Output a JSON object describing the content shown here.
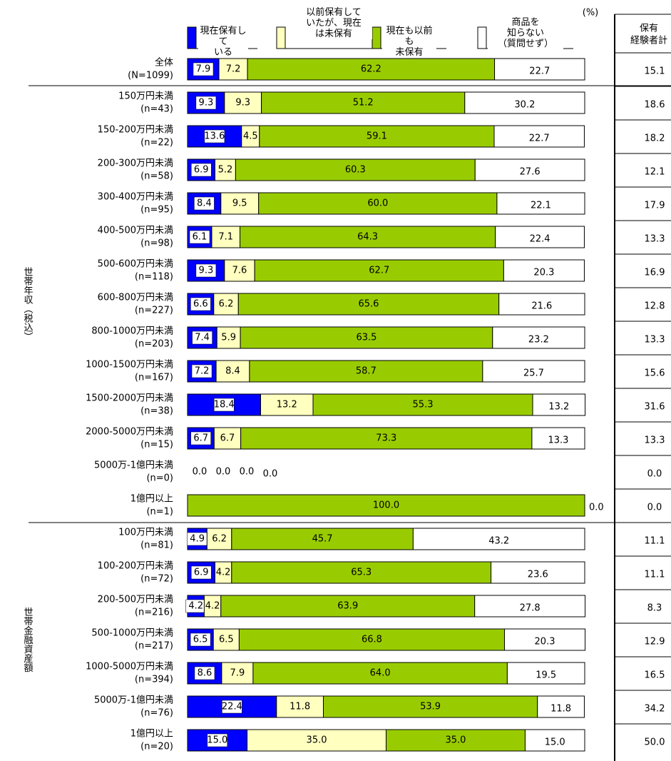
{
  "chart_data": {
    "type": "stacked-bar",
    "orientation": "horizontal",
    "unit": "(%)",
    "xlim": [
      0,
      100
    ],
    "categories": [
      "全体",
      "150万円未満",
      "150-200万円未満",
      "200-300万円未満",
      "300-400万円未満",
      "400-500万円未満",
      "500-600万円未満",
      "600-800万円未満",
      "800-1000万円未満",
      "1000-1500万円未満",
      "1500-2000万円未満",
      "2000-5000万円未満",
      "5000万-1億円未満",
      "1億円以上",
      "100万円未満",
      "100-200万円未満",
      "200-500万円未満",
      "500-1000万円未満",
      "1000-5000万円未満",
      "5000万-1億円未満",
      "1億円以上"
    ],
    "sample_sizes": [
      "(N=1099)",
      "(n=43)",
      "(n=22)",
      "(n=58)",
      "(n=95)",
      "(n=98)",
      "(n=118)",
      "(n=227)",
      "(n=203)",
      "(n=167)",
      "(n=38)",
      "(n=15)",
      "(n=0)",
      "(n=1)",
      "(n=81)",
      "(n=72)",
      "(n=216)",
      "(n=217)",
      "(n=394)",
      "(n=76)",
      "(n=20)"
    ],
    "groups": [
      {
        "label": "世帯年収（税込）",
        "first": 1,
        "last": 13
      },
      {
        "label": "世帯金融資産額",
        "first": 14,
        "last": 20
      }
    ],
    "series": [
      {
        "name": "現在保有して\nいる",
        "color": "#0000ff",
        "values": [
          7.9,
          9.3,
          13.6,
          6.9,
          8.4,
          6.1,
          9.3,
          6.6,
          7.4,
          7.2,
          18.4,
          6.7,
          0.0,
          0.0,
          4.9,
          6.9,
          4.2,
          6.5,
          8.6,
          22.4,
          15.0
        ],
        "value_labels": [
          "7.9",
          "9.3",
          "13.6",
          "6.9",
          "8.4",
          "6.1",
          "9.3",
          "6.6",
          "7.4",
          "7.2",
          "18.4",
          "6.7",
          "0.0",
          "0.0",
          "4.9",
          "6.9",
          "4.2",
          "6.5",
          "8.6",
          "22.4",
          "15.0"
        ]
      },
      {
        "name": "以前保有して\nいたが、現在\nは未保有",
        "color": "#ffffc0",
        "values": [
          7.2,
          9.3,
          4.5,
          5.2,
          9.5,
          7.1,
          7.6,
          6.2,
          5.9,
          8.4,
          13.2,
          6.7,
          0.0,
          0.0,
          6.2,
          4.2,
          4.2,
          6.5,
          7.9,
          11.8,
          35.0
        ],
        "value_labels": [
          "7.2",
          "9.3",
          "4.5",
          "5.2",
          "9.5",
          "7.1",
          "7.6",
          "6.2",
          "5.9",
          "8.4",
          "13.2",
          "6.7",
          "0.0",
          "0.0",
          "6.2",
          "4.2",
          "4.2",
          "6.5",
          "7.9",
          "11.8",
          "35.0"
        ]
      },
      {
        "name": "現在も以前も\n未保有",
        "color": "#99cc00",
        "values": [
          62.2,
          51.2,
          59.1,
          60.3,
          60.0,
          64.3,
          62.7,
          65.6,
          63.5,
          58.7,
          55.3,
          73.3,
          0.0,
          100.0,
          45.7,
          65.3,
          63.9,
          66.8,
          64.0,
          53.9,
          35.0
        ],
        "value_labels": [
          "62.2",
          "51.2",
          "59.1",
          "60.3",
          "60.0",
          "64.3",
          "62.7",
          "65.6",
          "63.5",
          "58.7",
          "55.3",
          "73.3",
          "0.0",
          "100.0",
          "45.7",
          "65.3",
          "63.9",
          "66.8",
          "64.0",
          "53.9",
          "35.0"
        ]
      },
      {
        "name": "商品を\n知らない\n（質問せず）",
        "color": "#ffffff",
        "values": [
          22.7,
          30.2,
          22.7,
          27.6,
          22.1,
          22.4,
          20.3,
          21.6,
          23.2,
          25.7,
          13.2,
          13.3,
          0.0,
          0.0,
          43.2,
          23.6,
          27.8,
          20.3,
          19.5,
          11.8,
          15.0
        ],
        "value_labels": [
          "22.7",
          "30.2",
          "22.7",
          "27.6",
          "22.1",
          "22.4",
          "20.3",
          "21.6",
          "23.2",
          "25.7",
          "13.2",
          "13.3",
          "0.0",
          "0.0",
          "43.2",
          "23.6",
          "27.8",
          "20.3",
          "19.5",
          "11.8",
          "15.0"
        ]
      }
    ],
    "total": {
      "header": [
        "保有",
        "経験者計"
      ],
      "values": [
        15.1,
        18.6,
        18.2,
        12.1,
        17.9,
        13.3,
        16.9,
        12.8,
        13.3,
        15.6,
        31.6,
        13.3,
        0.0,
        0.0,
        11.1,
        11.1,
        8.3,
        12.9,
        16.5,
        34.2,
        50.0
      ],
      "value_labels": [
        "15.1",
        "18.6",
        "18.2",
        "12.1",
        "17.9",
        "13.3",
        "16.9",
        "12.8",
        "13.3",
        "15.6",
        "31.6",
        "13.3",
        "0.0",
        "0.0",
        "11.1",
        "11.1",
        "8.3",
        "12.9",
        "16.5",
        "34.2",
        "50.0"
      ]
    }
  }
}
